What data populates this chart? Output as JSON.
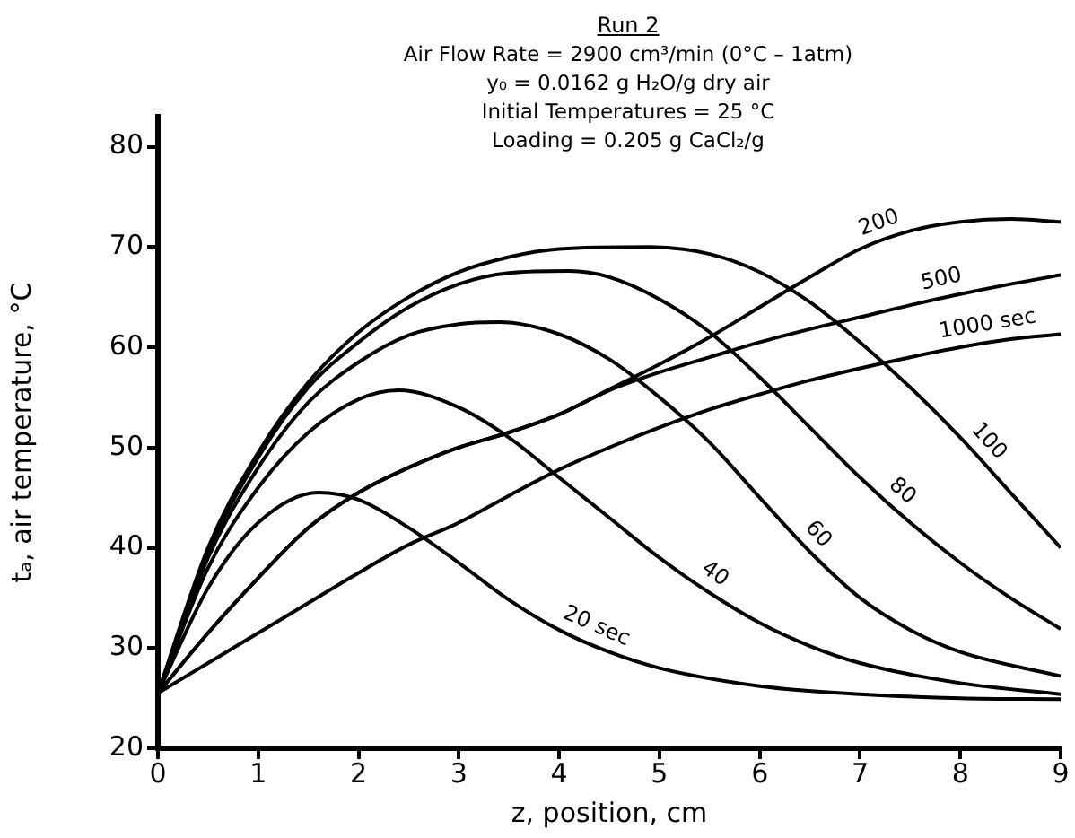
{
  "chart_data": {
    "type": "line",
    "title": "Run 2",
    "subtitle": "Air Flow Rate = 2900 cm³/min (0°C – 1atm)\ny₀ = 0.0162 g H₂O/g dry air\nInitial Temperatures = 25 °C\nLoading = 0.205 g CaCl₂/g",
    "xlabel": "z, position, cm",
    "ylabel": "tₐ, air temperature, °C",
    "xlim": [
      0,
      9
    ],
    "ylim": [
      20,
      83
    ],
    "xticks": [
      0,
      1,
      2,
      3,
      4,
      5,
      6,
      7,
      8,
      9
    ],
    "yticks": [
      20,
      30,
      40,
      50,
      60,
      70,
      80
    ],
    "grid": false,
    "legend": false,
    "marker": "none",
    "line_style": "solid",
    "series": [
      {
        "color": "#000000",
        "x": [
          0,
          0.5,
          1,
          1.6,
          2,
          2.5,
          3,
          3.5,
          4,
          4.5,
          5,
          6,
          7,
          8,
          9
        ],
        "values": [
          25.5,
          36,
          42.5,
          45.5,
          44.8,
          42,
          38.5,
          34.8,
          31.8,
          29.6,
          28,
          26.2,
          25.4,
          25,
          24.9
        ]
      },
      {
        "color": "#000000",
        "x": [
          0,
          0.5,
          1,
          1.5,
          2,
          2.4,
          3,
          3.5,
          4,
          4.5,
          5,
          5.5,
          6,
          6.5,
          7,
          8,
          9
        ],
        "values": [
          25.5,
          38,
          46,
          51.5,
          54.8,
          55.7,
          54,
          51,
          47,
          43,
          39,
          35.5,
          32.5,
          30.2,
          28.5,
          26.5,
          25.4
        ]
      },
      {
        "color": "#000000",
        "x": [
          0,
          0.5,
          1,
          1.5,
          2,
          2.5,
          3,
          3.4,
          4,
          4.5,
          5,
          5.5,
          6,
          6.5,
          7,
          7.5,
          8,
          9
        ],
        "values": [
          25.5,
          39,
          48,
          54.5,
          58.5,
          61.2,
          62.3,
          62.5,
          61.3,
          58.8,
          55,
          50.5,
          45,
          39.6,
          35,
          31.8,
          29.6,
          27.2
        ]
      },
      {
        "color": "#000000",
        "x": [
          0,
          0.5,
          1,
          1.5,
          2,
          2.5,
          3,
          3.5,
          4.1,
          4.5,
          5,
          5.5,
          6,
          6.5,
          7,
          7.5,
          8,
          8.5,
          9
        ],
        "values": [
          25.5,
          39.5,
          49,
          56,
          60.5,
          64,
          66.3,
          67.4,
          67.6,
          67,
          64.8,
          61.5,
          57,
          52,
          47,
          42.5,
          38.5,
          35,
          31.9
        ]
      },
      {
        "color": "#000000",
        "x": [
          0,
          0.5,
          1,
          1.5,
          2,
          2.5,
          3,
          3.5,
          4,
          4.9,
          5.5,
          6,
          6.5,
          7,
          7.5,
          8,
          8.5,
          9
        ],
        "values": [
          25.5,
          40,
          49.5,
          56.5,
          61.5,
          65,
          67.5,
          69,
          69.8,
          70,
          69.3,
          67.5,
          64.5,
          60.5,
          56,
          51,
          45.5,
          40
        ]
      },
      {
        "color": "#000000",
        "x": [
          0,
          0.5,
          1,
          1.5,
          2,
          2.5,
          3,
          3.5,
          4,
          4.5,
          5,
          5.5,
          6,
          6.5,
          7,
          7.5,
          8,
          8.5,
          9
        ],
        "values": [
          25.5,
          31.5,
          37,
          42,
          45.5,
          48,
          50,
          51.5,
          53.3,
          55.8,
          58.3,
          61,
          64,
          67,
          69.8,
          71.6,
          72.5,
          72.8,
          72.5
        ]
      },
      {
        "color": "#000000",
        "x": [
          0,
          0.5,
          1,
          1.5,
          2,
          2.5,
          3,
          3.5,
          4,
          4.5,
          5,
          5.5,
          6,
          6.5,
          7,
          7.5,
          8,
          8.5,
          9
        ],
        "values": [
          25.5,
          31.5,
          37,
          42,
          45.5,
          48,
          50,
          51.5,
          53.3,
          55.7,
          57.5,
          59,
          60.5,
          61.8,
          63,
          64.2,
          65.3,
          66.3,
          67.2
        ]
      },
      {
        "color": "#000000",
        "x": [
          0,
          0.5,
          1,
          1.5,
          2,
          2.5,
          3,
          3.5,
          4,
          4.5,
          5,
          5.5,
          6,
          6.5,
          7,
          7.5,
          8,
          8.5,
          9
        ],
        "values": [
          25.5,
          28.5,
          31.5,
          34.5,
          37.5,
          40.3,
          42.5,
          45.2,
          47.8,
          50,
          52,
          53.8,
          55.3,
          56.7,
          57.9,
          59,
          60,
          60.8,
          61.3
        ]
      }
    ],
    "annotations": [
      {
        "text": "20 sec",
        "x": 4.3,
        "y": 30.5
      },
      {
        "text": "40",
        "x": 5.45,
        "y": 35.9
      },
      {
        "text": "60",
        "x": 6.45,
        "y": 40.1
      },
      {
        "text": "80",
        "x": 7.3,
        "y": 44.3
      },
      {
        "text": "100",
        "x": 8.15,
        "y": 49.4
      },
      {
        "text": "200",
        "x": 7.25,
        "y": 70.7
      },
      {
        "text": "500",
        "x": 7.85,
        "y": 65
      },
      {
        "text": "1000 sec",
        "x": 8.3,
        "y": 60.5
      }
    ]
  }
}
